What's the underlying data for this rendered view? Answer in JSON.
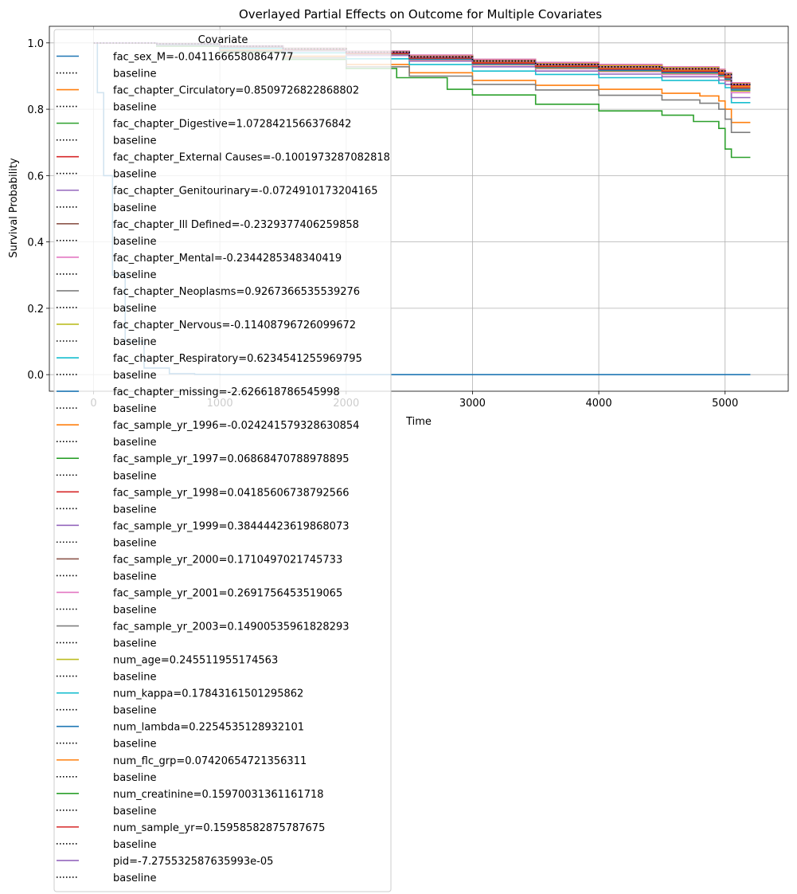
{
  "chart_data": {
    "type": "line",
    "title": "Overlayed Partial Effects on Outcome for Multiple Covariates",
    "xlabel": "Time",
    "ylabel": "Survival Probability",
    "xlim": [
      -350,
      5500
    ],
    "ylim": [
      -0.05,
      1.05
    ],
    "xticks": [
      0,
      1000,
      2000,
      3000,
      4000,
      5000
    ],
    "yticks": [
      0.0,
      0.2,
      0.4,
      0.6,
      0.8,
      1.0
    ],
    "xtick_labels": [
      "0",
      "1000",
      "2000",
      "3000",
      "4000",
      "5000"
    ],
    "ytick_labels": [
      "0.0",
      "0.2",
      "0.4",
      "0.6",
      "0.8",
      "1.0"
    ],
    "grid": true,
    "legend_title": "Covariate",
    "legend_position": "upper-left",
    "baseline_label": "baseline",
    "baseline": {
      "color": "#000000",
      "x": [
        0,
        500,
        1000,
        1500,
        2000,
        2500,
        3000,
        3500,
        4000,
        4500,
        4950,
        5000,
        5050,
        5200
      ],
      "y": [
        1.0,
        0.997,
        0.99,
        0.982,
        0.972,
        0.958,
        0.945,
        0.935,
        0.928,
        0.922,
        0.915,
        0.905,
        0.875,
        0.875
      ]
    },
    "series": [
      {
        "name": "fac_sex_M=-0.0411666580864777",
        "color": "#1f77b4",
        "x": [
          0,
          500,
          1000,
          1500,
          2000,
          2500,
          3000,
          3500,
          4000,
          4500,
          4950,
          5000,
          5050,
          5200
        ],
        "y": [
          1.0,
          0.997,
          0.99,
          0.982,
          0.973,
          0.96,
          0.947,
          0.937,
          0.93,
          0.924,
          0.918,
          0.908,
          0.878,
          0.878
        ]
      },
      {
        "name": "fac_chapter_Circulatory=0.8509726822868802",
        "color": "#ff7f0e",
        "x": [
          0,
          500,
          1000,
          1500,
          2000,
          2500,
          3000,
          3500,
          4000,
          4500,
          4800,
          4950,
          5000,
          5050,
          5200
        ],
        "y": [
          1.0,
          0.993,
          0.978,
          0.96,
          0.935,
          0.91,
          0.887,
          0.872,
          0.86,
          0.848,
          0.84,
          0.825,
          0.8,
          0.76,
          0.76
        ]
      },
      {
        "name": "fac_chapter_Digestive=1.0728421566376842",
        "color": "#2ca02c",
        "x": [
          0,
          500,
          1000,
          1500,
          2000,
          2400,
          2800,
          3000,
          3500,
          4000,
          4500,
          4750,
          4850,
          4950,
          5000,
          5050,
          5200
        ],
        "y": [
          1.0,
          0.99,
          0.972,
          0.95,
          0.923,
          0.895,
          0.86,
          0.843,
          0.815,
          0.795,
          0.782,
          0.763,
          0.763,
          0.742,
          0.68,
          0.655,
          0.655
        ]
      },
      {
        "name": "fac_chapter_External Causes=-0.1001973287082818",
        "color": "#d62728",
        "x": [
          0,
          500,
          1000,
          1500,
          2000,
          2500,
          3000,
          3500,
          4000,
          4500,
          4950,
          5000,
          5050,
          5200
        ],
        "y": [
          1.0,
          0.997,
          0.99,
          0.983,
          0.973,
          0.96,
          0.947,
          0.938,
          0.932,
          0.925,
          0.918,
          0.908,
          0.878,
          0.878
        ]
      },
      {
        "name": "fac_chapter_Genitourinary=-0.0724910173204165",
        "color": "#9467bd",
        "x": [
          0,
          500,
          1000,
          1500,
          2000,
          2500,
          3000,
          3500,
          4000,
          4500,
          4950,
          5000,
          5050,
          5200
        ],
        "y": [
          1.0,
          0.997,
          0.99,
          0.982,
          0.972,
          0.958,
          0.944,
          0.934,
          0.927,
          0.92,
          0.912,
          0.9,
          0.87,
          0.87
        ]
      },
      {
        "name": "fac_chapter_Ill Defined=-0.2329377406259858",
        "color": "#8c564b",
        "x": [
          0,
          500,
          1000,
          1500,
          2000,
          2500,
          3000,
          3500,
          4000,
          4500,
          4950,
          5000,
          5050,
          5200
        ],
        "y": [
          1.0,
          0.997,
          0.991,
          0.984,
          0.975,
          0.963,
          0.95,
          0.941,
          0.935,
          0.928,
          0.92,
          0.91,
          0.88,
          0.88
        ]
      },
      {
        "name": "fac_chapter_Mental=-0.2344285348340419",
        "color": "#e377c2",
        "x": [
          0,
          500,
          1000,
          1500,
          2000,
          2500,
          3000,
          3500,
          4000,
          4500,
          4950,
          5000,
          5050,
          5200
        ],
        "y": [
          1.0,
          0.997,
          0.991,
          0.984,
          0.975,
          0.963,
          0.95,
          0.941,
          0.935,
          0.928,
          0.92,
          0.91,
          0.88,
          0.88
        ]
      },
      {
        "name": "fac_chapter_Neoplasms=0.9267366535539276",
        "color": "#7f7f7f",
        "x": [
          0,
          500,
          1000,
          1500,
          2000,
          2500,
          3000,
          3500,
          4000,
          4500,
          4800,
          4950,
          5000,
          5050,
          5200
        ],
        "y": [
          1.0,
          0.992,
          0.975,
          0.955,
          0.928,
          0.9,
          0.875,
          0.858,
          0.842,
          0.828,
          0.818,
          0.8,
          0.77,
          0.73,
          0.73
        ]
      },
      {
        "name": "fac_chapter_Nervous=-0.11408796726099672",
        "color": "#bcbd22",
        "x": [
          0,
          500,
          1000,
          1500,
          2000,
          2500,
          3000,
          3500,
          4000,
          4500,
          4950,
          5000,
          5050,
          5200
        ],
        "y": [
          1.0,
          0.997,
          0.99,
          0.983,
          0.973,
          0.96,
          0.947,
          0.937,
          0.931,
          0.925,
          0.917,
          0.907,
          0.877,
          0.877
        ]
      },
      {
        "name": "fac_chapter_Respiratory=0.6234541255969795",
        "color": "#17becf",
        "x": [
          0,
          500,
          1000,
          1500,
          2000,
          2500,
          3000,
          3500,
          4000,
          4500,
          4950,
          5000,
          5050,
          5200
        ],
        "y": [
          1.0,
          0.995,
          0.983,
          0.97,
          0.952,
          0.935,
          0.915,
          0.905,
          0.895,
          0.887,
          0.878,
          0.865,
          0.82,
          0.82
        ]
      },
      {
        "name": "fac_chapter_missing=-2.626618786545998",
        "color": "#1f77b4",
        "x": [
          0,
          30,
          80,
          150,
          250,
          400,
          600,
          800,
          1000,
          1300,
          5200
        ],
        "y": [
          1.0,
          0.85,
          0.6,
          0.3,
          0.1,
          0.02,
          0.003,
          0.001,
          0.0,
          0.0,
          0.0
        ]
      },
      {
        "name": "fac_sample_yr_1996=-0.024241579328630854",
        "color": "#ff7f0e",
        "x": [
          0,
          500,
          1000,
          1500,
          2000,
          2500,
          3000,
          3500,
          4000,
          4500,
          4950,
          5000,
          5050,
          5200
        ],
        "y": [
          1.0,
          0.997,
          0.99,
          0.982,
          0.972,
          0.959,
          0.946,
          0.936,
          0.929,
          0.923,
          0.916,
          0.906,
          0.876,
          0.876
        ]
      },
      {
        "name": "fac_sample_yr_1997=0.06868470788978895",
        "color": "#2ca02c",
        "x": [
          0,
          500,
          1000,
          1500,
          2000,
          2500,
          3000,
          3500,
          4000,
          4500,
          4950,
          5000,
          5050,
          5200
        ],
        "y": [
          1.0,
          0.997,
          0.99,
          0.981,
          0.97,
          0.956,
          0.942,
          0.932,
          0.925,
          0.918,
          0.91,
          0.9,
          0.87,
          0.87
        ]
      },
      {
        "name": "fac_sample_yr_1998=0.04185606738792566",
        "color": "#d62728",
        "x": [
          0,
          500,
          1000,
          1500,
          2000,
          2500,
          3000,
          3500,
          4000,
          4500,
          4950,
          5000,
          5050,
          5200
        ],
        "y": [
          1.0,
          0.997,
          0.99,
          0.981,
          0.971,
          0.957,
          0.943,
          0.933,
          0.926,
          0.92,
          0.912,
          0.902,
          0.872,
          0.872
        ]
      },
      {
        "name": "fac_sample_yr_1999=0.38444423619868073",
        "color": "#9467bd",
        "x": [
          0,
          500,
          1000,
          1500,
          2000,
          2500,
          3000,
          3500,
          4000,
          4500,
          4950,
          5000,
          5050,
          5200
        ],
        "y": [
          1.0,
          0.996,
          0.987,
          0.976,
          0.962,
          0.945,
          0.928,
          0.915,
          0.906,
          0.898,
          0.888,
          0.875,
          0.835,
          0.835
        ]
      },
      {
        "name": "fac_sample_yr_2000=0.1710497021745733",
        "color": "#8c564b",
        "x": [
          0,
          500,
          1000,
          1500,
          2000,
          2500,
          3000,
          3500,
          4000,
          4500,
          4950,
          5000,
          5050,
          5200
        ],
        "y": [
          1.0,
          0.997,
          0.989,
          0.98,
          0.968,
          0.953,
          0.938,
          0.928,
          0.92,
          0.913,
          0.905,
          0.894,
          0.863,
          0.863
        ]
      },
      {
        "name": "fac_sample_yr_2001=0.2691756453519065",
        "color": "#e377c2",
        "x": [
          0,
          500,
          1000,
          1500,
          2000,
          2500,
          3000,
          3500,
          4000,
          4500,
          4950,
          5000,
          5050,
          5200
        ],
        "y": [
          1.0,
          0.996,
          0.988,
          0.978,
          0.965,
          0.949,
          0.933,
          0.922,
          0.913,
          0.905,
          0.897,
          0.885,
          0.85,
          0.85
        ]
      },
      {
        "name": "fac_sample_yr_2003=0.14900535961828293",
        "color": "#7f7f7f",
        "x": [
          0,
          500,
          1000,
          1500,
          2000,
          2500,
          3000,
          3500,
          4000,
          4500,
          4950,
          5000,
          5050,
          5200
        ],
        "y": [
          1.0,
          0.997,
          0.989,
          0.98,
          0.968,
          0.954,
          0.939,
          0.929,
          0.921,
          0.914,
          0.906,
          0.895,
          0.865,
          0.865
        ]
      },
      {
        "name": "num_age=0.245511955174563",
        "color": "#bcbd22",
        "x": [
          0,
          500,
          1000,
          1500,
          2000,
          2500,
          3000,
          3500,
          4000,
          4500,
          4950,
          5000,
          5050,
          5200
        ],
        "y": [
          1.0,
          0.996,
          0.988,
          0.978,
          0.966,
          0.95,
          0.935,
          0.924,
          0.915,
          0.908,
          0.9,
          0.888,
          0.855,
          0.855
        ]
      },
      {
        "name": "num_kappa=0.17843161501295862",
        "color": "#17becf",
        "x": [
          0,
          500,
          1000,
          1500,
          2000,
          2500,
          3000,
          3500,
          4000,
          4500,
          4950,
          5000,
          5050,
          5200
        ],
        "y": [
          1.0,
          0.997,
          0.989,
          0.98,
          0.968,
          0.953,
          0.938,
          0.928,
          0.92,
          0.913,
          0.905,
          0.894,
          0.862,
          0.862
        ]
      },
      {
        "name": "num_lambda=0.2254535128932101",
        "color": "#1f77b4",
        "x": [
          0,
          500,
          1000,
          1500,
          2000,
          2500,
          3000,
          3500,
          4000,
          4500,
          4950,
          5000,
          5050,
          5200
        ],
        "y": [
          1.0,
          0.996,
          0.988,
          0.979,
          0.967,
          0.951,
          0.936,
          0.926,
          0.917,
          0.91,
          0.902,
          0.89,
          0.858,
          0.858
        ]
      },
      {
        "name": "num_flc_grp=0.07420654721356311",
        "color": "#ff7f0e",
        "x": [
          0,
          500,
          1000,
          1500,
          2000,
          2500,
          3000,
          3500,
          4000,
          4500,
          4950,
          5000,
          5050,
          5200
        ],
        "y": [
          1.0,
          0.997,
          0.99,
          0.981,
          0.97,
          0.956,
          0.942,
          0.932,
          0.925,
          0.918,
          0.91,
          0.9,
          0.869,
          0.869
        ]
      },
      {
        "name": "num_creatinine=0.15970031361161718",
        "color": "#2ca02c",
        "x": [
          0,
          500,
          1000,
          1500,
          2000,
          2500,
          3000,
          3500,
          4000,
          4500,
          4950,
          5000,
          5050,
          5200
        ],
        "y": [
          1.0,
          0.997,
          0.989,
          0.98,
          0.968,
          0.954,
          0.939,
          0.929,
          0.921,
          0.914,
          0.906,
          0.895,
          0.864,
          0.864
        ]
      },
      {
        "name": "num_sample_yr=0.15958582875787675",
        "color": "#d62728",
        "x": [
          0,
          500,
          1000,
          1500,
          2000,
          2500,
          3000,
          3500,
          4000,
          4500,
          4950,
          5000,
          5050,
          5200
        ],
        "y": [
          1.0,
          0.997,
          0.989,
          0.98,
          0.968,
          0.954,
          0.939,
          0.929,
          0.921,
          0.914,
          0.906,
          0.895,
          0.864,
          0.864
        ]
      },
      {
        "name": "pid=-7.275532587635993e-05",
        "color": "#9467bd",
        "x": [
          0,
          500,
          1000,
          1500,
          2000,
          2500,
          3000,
          3500,
          4000,
          4500,
          4950,
          5000,
          5050,
          5200
        ],
        "y": [
          1.0,
          0.997,
          0.99,
          0.982,
          0.972,
          0.958,
          0.945,
          0.935,
          0.928,
          0.922,
          0.915,
          0.905,
          0.875,
          0.875
        ]
      }
    ]
  }
}
